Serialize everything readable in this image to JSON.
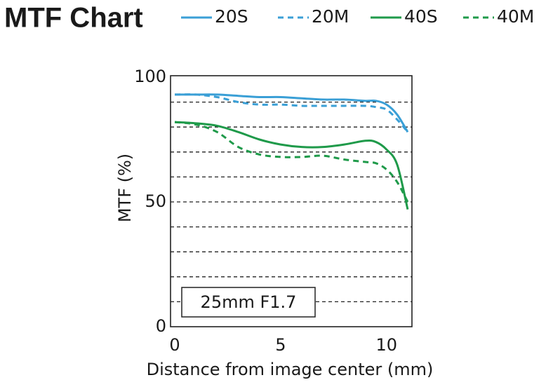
{
  "chart_data": {
    "type": "line",
    "title": "MTF Chart",
    "x_label": "Distance from image center (mm)",
    "y_label": "MTF (%)",
    "annotation": "25mm F1.7",
    "x": [
      0,
      1,
      2,
      3,
      4,
      5,
      6,
      7,
      8,
      9,
      9.5,
      10,
      10.5,
      11
    ],
    "series": [
      {
        "name": "20S",
        "color": "#3a9fd6",
        "style": "solid",
        "values": [
          93,
          93,
          93,
          92.5,
          92,
          92,
          91.5,
          91,
          91,
          90.5,
          90.5,
          89,
          85,
          78
        ]
      },
      {
        "name": "20M",
        "color": "#3a9fd6",
        "style": "dashed",
        "values": [
          93,
          93,
          92,
          90,
          89,
          89,
          88.5,
          88.5,
          88.5,
          88.5,
          88,
          87,
          83,
          78
        ]
      },
      {
        "name": "40S",
        "color": "#1f9a4a",
        "style": "solid",
        "values": [
          82,
          81.5,
          80.5,
          78,
          75,
          73,
          72,
          72,
          73,
          74.5,
          74,
          71,
          65,
          47
        ]
      },
      {
        "name": "40M",
        "color": "#1f9a4a",
        "style": "dashed",
        "values": [
          82,
          81,
          78,
          72,
          69,
          68,
          68,
          68.5,
          67,
          66,
          65.5,
          63,
          58,
          50
        ]
      }
    ],
    "xlim": [
      -0.2,
      11.2
    ],
    "ylim": [
      0,
      100
    ],
    "xticks": [
      0,
      5,
      10
    ],
    "yticks": [
      0,
      50,
      100
    ],
    "ygrid": [
      10,
      20,
      30,
      40,
      50,
      60,
      70,
      80,
      90
    ],
    "grid": true
  }
}
